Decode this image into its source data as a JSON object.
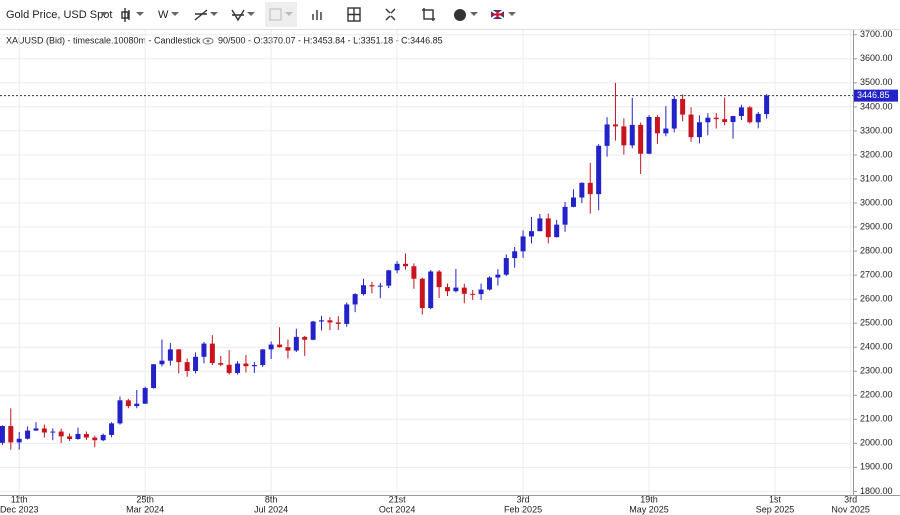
{
  "toolbar": {
    "instrument": "Gold Price, USD Spot",
    "interval": "W"
  },
  "chart_data": {
    "type": "candlestick",
    "title": "XAUUSD (Bid) - timescale.10080m - Candlestick",
    "subtitle": "90/500 - O:3370.07 - H:3453.84 - L:3351.18 - C:3446.85",
    "colors": {
      "up": "#2222c8",
      "down": "#c8141e"
    },
    "grid": true,
    "x": [
      "2023-11-27",
      "2023-12-04",
      "2023-12-11",
      "2023-12-18",
      "2023-12-25",
      "2024-01-01",
      "2024-01-08",
      "2024-01-15",
      "2024-01-22",
      "2024-01-29",
      "2024-02-05",
      "2024-02-12",
      "2024-02-19",
      "2024-02-26",
      "2024-03-04",
      "2024-03-11",
      "2024-03-18",
      "2024-03-25",
      "2024-04-01",
      "2024-04-08",
      "2024-04-15",
      "2024-04-22",
      "2024-04-29",
      "2024-05-06",
      "2024-05-13",
      "2024-05-20",
      "2024-05-27",
      "2024-06-03",
      "2024-06-10",
      "2024-06-17",
      "2024-06-24",
      "2024-07-01",
      "2024-07-08",
      "2024-07-15",
      "2024-07-22",
      "2024-07-29",
      "2024-08-05",
      "2024-08-12",
      "2024-08-19",
      "2024-08-26",
      "2024-09-02",
      "2024-09-09",
      "2024-09-16",
      "2024-09-23",
      "2024-09-30",
      "2024-10-07",
      "2024-10-14",
      "2024-10-21",
      "2024-10-28",
      "2024-11-04",
      "2024-11-11",
      "2024-11-18",
      "2024-11-25",
      "2024-12-02",
      "2024-12-09",
      "2024-12-16",
      "2024-12-23",
      "2024-12-30",
      "2025-01-06",
      "2025-01-13",
      "2025-01-20",
      "2025-01-27",
      "2025-02-03",
      "2025-02-10",
      "2025-02-17",
      "2025-02-24",
      "2025-03-03",
      "2025-03-10",
      "2025-03-17",
      "2025-03-24",
      "2025-03-31",
      "2025-04-07",
      "2025-04-14",
      "2025-04-21",
      "2025-04-28",
      "2025-05-05",
      "2025-05-12",
      "2025-05-19",
      "2025-05-26",
      "2025-06-02",
      "2025-06-09",
      "2025-06-16",
      "2025-06-23",
      "2025-06-30",
      "2025-07-07",
      "2025-07-14",
      "2025-07-21",
      "2025-07-28",
      "2025-08-04",
      "2025-08-11",
      "2025-08-18",
      "2025-08-25"
    ],
    "open": [
      2002,
      2072,
      2004,
      2019,
      2053,
      2062,
      2045,
      2049,
      2029,
      2018,
      2039,
      2024,
      2013,
      2035,
      2083,
      2179,
      2155,
      2165,
      2230,
      2329,
      2344,
      2391,
      2338,
      2301,
      2360,
      2415,
      2334,
      2327,
      2293,
      2332,
      2321,
      2326,
      2391,
      2411,
      2400,
      2386,
      2443,
      2431,
      2507,
      2512,
      2503,
      2497,
      2578,
      2621,
      2658,
      2653,
      2656,
      2720,
      2747,
      2737,
      2685,
      2563,
      2715,
      2650,
      2633,
      2648,
      2622,
      2621,
      2640,
      2690,
      2702,
      2771,
      2799,
      2861,
      2883,
      2936,
      2858,
      2910,
      2984,
      3023,
      3084,
      3037,
      3238,
      3327,
      3319,
      3240,
      3325,
      3205,
      3358,
      3290,
      3310,
      3433,
      3368,
      3274,
      3336,
      3355,
      3349,
      3337,
      3362,
      3398,
      3336,
      3370.07
    ],
    "high": [
      2075,
      2146,
      2047,
      2070,
      2088,
      2078,
      2062,
      2061,
      2041,
      2065,
      2049,
      2032,
      2041,
      2088,
      2195,
      2185,
      2222,
      2236,
      2330,
      2432,
      2418,
      2392,
      2353,
      2378,
      2422,
      2450,
      2364,
      2388,
      2342,
      2368,
      2338,
      2392,
      2424,
      2483,
      2432,
      2477,
      2447,
      2509,
      2531,
      2525,
      2529,
      2586,
      2625,
      2685,
      2672,
      2668,
      2722,
      2758,
      2790,
      2749,
      2689,
      2721,
      2721,
      2665,
      2726,
      2664,
      2638,
      2665,
      2695,
      2725,
      2786,
      2817,
      2886,
      2942,
      2954,
      2956,
      2930,
      3004,
      3057,
      3086,
      3167,
      3245,
      3357,
      3500,
      3352,
      3438,
      3335,
      3366,
      3366,
      3403,
      3446,
      3452,
      3398,
      3365,
      3374,
      3375,
      3439,
      3363,
      3409,
      3404,
      3379,
      3453.84
    ],
    "low": [
      1993,
      1973,
      1974,
      2016,
      2052,
      2024,
      2013,
      2001,
      2010,
      2015,
      2014,
      1984,
      2009,
      2025,
      2078,
      2146,
      2146,
      2164,
      2228,
      2320,
      2324,
      2291,
      2277,
      2291,
      2333,
      2325,
      2321,
      2286,
      2286,
      2295,
      2293,
      2318,
      2351,
      2398,
      2353,
      2380,
      2364,
      2429,
      2470,
      2471,
      2472,
      2485,
      2546,
      2615,
      2624,
      2604,
      2646,
      2708,
      2723,
      2643,
      2536,
      2558,
      2605,
      2613,
      2628,
      2583,
      2597,
      2597,
      2636,
      2657,
      2696,
      2731,
      2772,
      2832,
      2882,
      2832,
      2857,
      2880,
      2982,
      3000,
      2956,
      2970,
      3193,
      3260,
      3202,
      3228,
      3121,
      3204,
      3246,
      3278,
      3294,
      3340,
      3255,
      3248,
      3282,
      3310,
      3324,
      3268,
      3345,
      3331,
      3311,
      3351.18
    ],
    "close": [
      2072,
      2004,
      2019,
      2053,
      2062,
      2045,
      2049,
      2029,
      2018,
      2039,
      2024,
      2013,
      2035,
      2083,
      2179,
      2155,
      2165,
      2230,
      2329,
      2344,
      2391,
      2338,
      2301,
      2360,
      2415,
      2334,
      2327,
      2293,
      2332,
      2321,
      2326,
      2391,
      2411,
      2400,
      2386,
      2443,
      2431,
      2507,
      2512,
      2503,
      2497,
      2578,
      2621,
      2658,
      2653,
      2656,
      2720,
      2747,
      2737,
      2685,
      2563,
      2715,
      2650,
      2633,
      2648,
      2622,
      2621,
      2640,
      2690,
      2702,
      2771,
      2799,
      2861,
      2883,
      2936,
      2858,
      2910,
      2984,
      3023,
      3084,
      3037,
      3238,
      3327,
      3319,
      3240,
      3325,
      3205,
      3358,
      3290,
      3310,
      3433,
      3368,
      3274,
      3336,
      3355,
      3349,
      3337,
      3362,
      3398,
      3336,
      3371,
      3446.85
    ],
    "xlim": [
      "2023-11-25",
      "2025-11-05"
    ],
    "xticks": [
      {
        "value": "2023-12-11",
        "label": [
          "11th",
          "Dec 2023"
        ]
      },
      {
        "value": "2024-03-25",
        "label": [
          "25th",
          "Mar 2024"
        ]
      },
      {
        "value": "2024-07-08",
        "label": [
          "8th",
          "Jul 2024"
        ]
      },
      {
        "value": "2024-10-21",
        "label": [
          "21st",
          "Oct 2024"
        ]
      },
      {
        "value": "2025-02-03",
        "label": [
          "3rd",
          "Feb 2025"
        ]
      },
      {
        "value": "2025-05-19",
        "label": [
          "19th",
          "May 2025"
        ]
      },
      {
        "value": "2025-09-01",
        "label": [
          "1st",
          "Sep 2025"
        ]
      },
      {
        "value": "2025-11-03",
        "label": [
          "3rd",
          "Nov 2025"
        ]
      }
    ],
    "ylim": [
      1785,
      3720
    ],
    "yticks": [
      {
        "value": 1800,
        "label": "1800.00"
      },
      {
        "value": 1900,
        "label": "1900.00"
      },
      {
        "value": 2000,
        "label": "2000.00"
      },
      {
        "value": 2100,
        "label": "2100.00"
      },
      {
        "value": 2200,
        "label": "2200.00"
      },
      {
        "value": 2300,
        "label": "2300.00"
      },
      {
        "value": 2400,
        "label": "2400.00"
      },
      {
        "value": 2500,
        "label": "2500.00"
      },
      {
        "value": 2600,
        "label": "2600.00"
      },
      {
        "value": 2700,
        "label": "2700.00"
      },
      {
        "value": 2800,
        "label": "2800.00"
      },
      {
        "value": 2900,
        "label": "2900.00"
      },
      {
        "value": 3000,
        "label": "3000.00"
      },
      {
        "value": 3100,
        "label": "3100.00"
      },
      {
        "value": 3200,
        "label": "3200.00"
      },
      {
        "value": 3300,
        "label": "3300.00"
      },
      {
        "value": 3400,
        "label": "3400.00"
      },
      {
        "value": 3500,
        "label": "3500.00"
      },
      {
        "value": 3600,
        "label": "3600.00"
      },
      {
        "value": 3700,
        "label": "3700.00"
      }
    ]
  }
}
